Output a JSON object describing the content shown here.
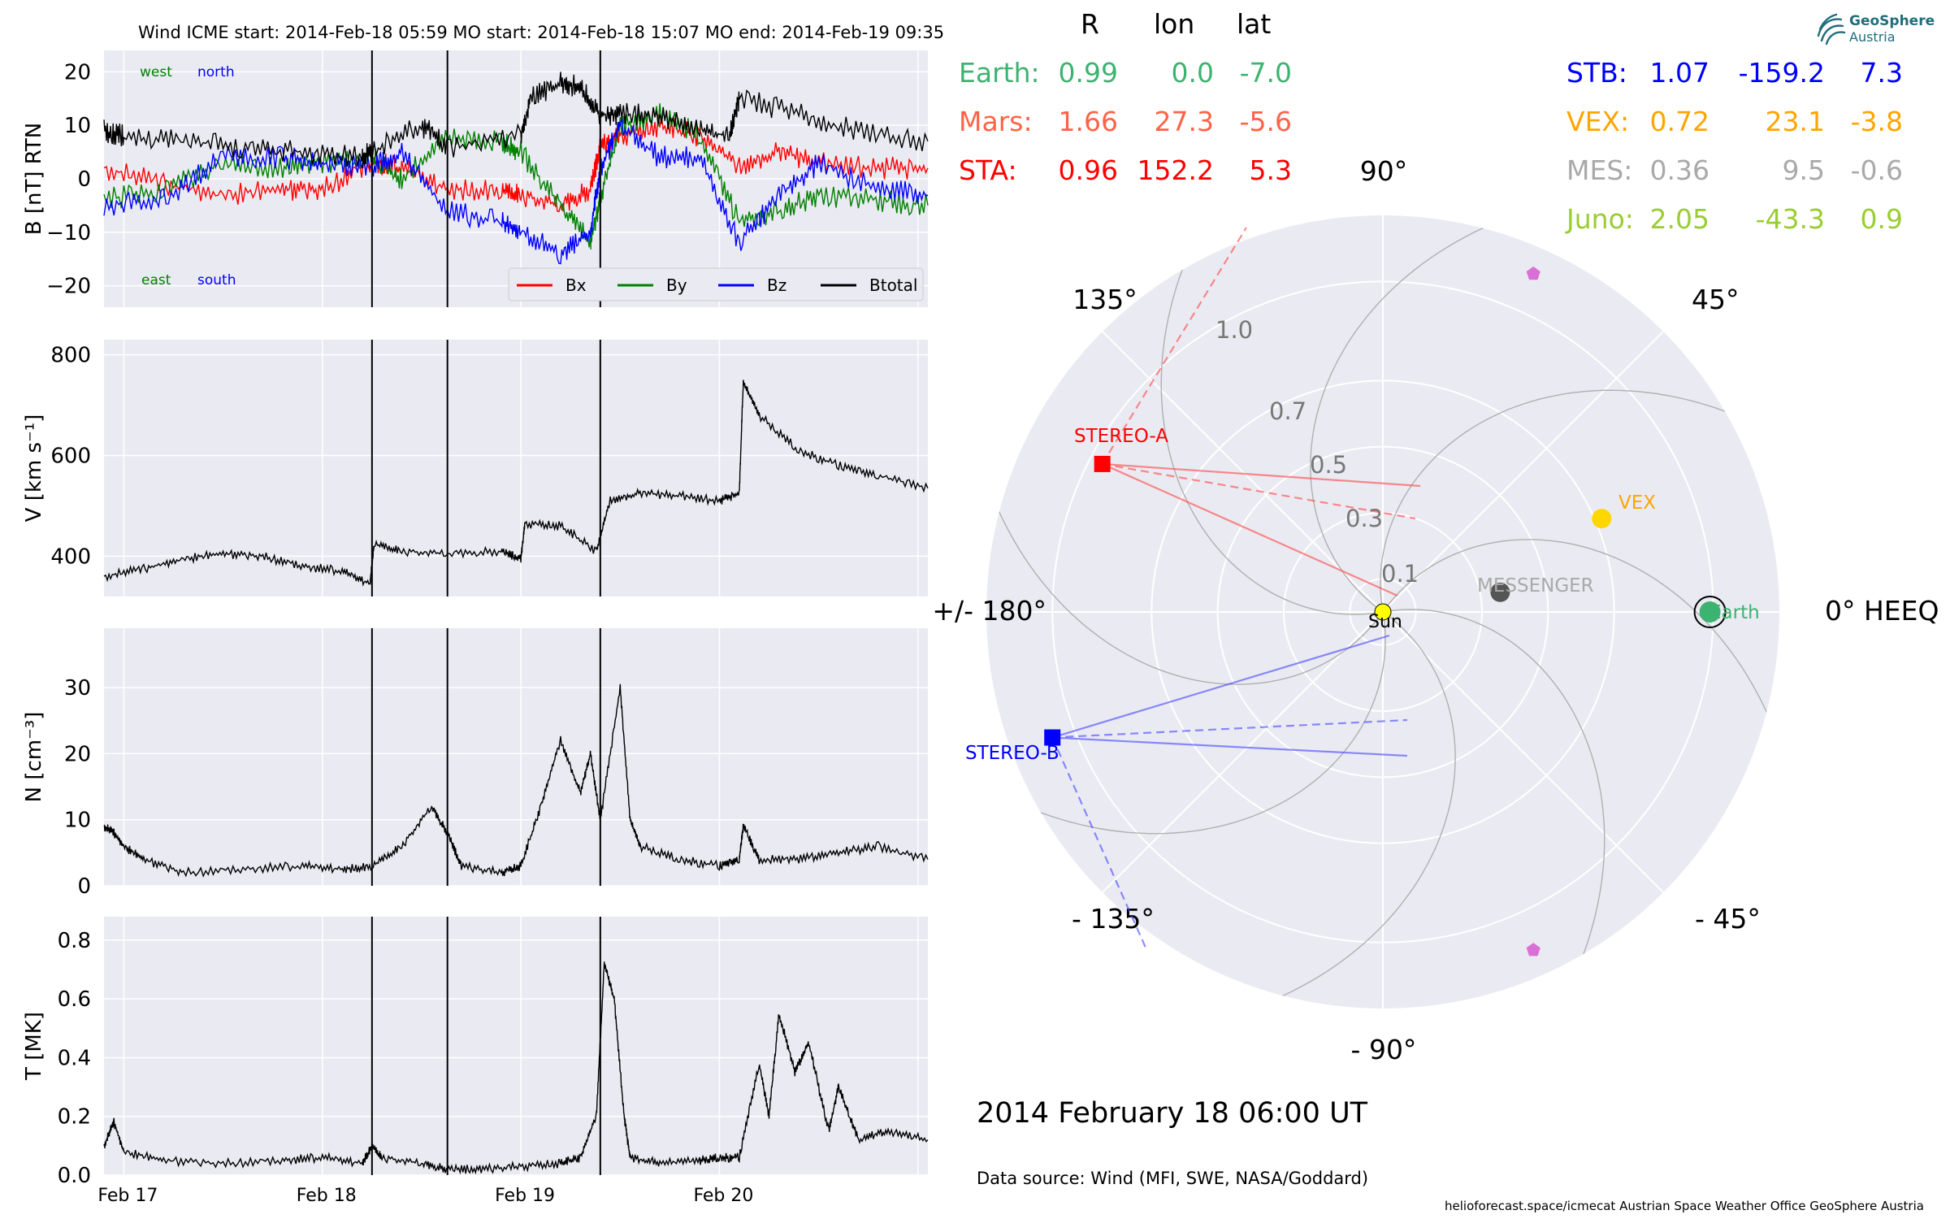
{
  "header": {
    "title": "Wind    ICME start: 2014-Feb-18 05:59   MO start: 2014-Feb-18 15:07   MO end: 2014-Feb-19 09:35"
  },
  "table": {
    "columns": [
      "R",
      "lon",
      "lat"
    ],
    "rows_left": [
      {
        "name": "Earth:",
        "R": "0.99",
        "lon": "0.0",
        "lat": "-7.0",
        "color": "#3cb371"
      },
      {
        "name": "Mars:",
        "R": "1.66",
        "lon": "27.3",
        "lat": "-5.6",
        "color": "#ff6347"
      },
      {
        "name": "STA:",
        "R": "0.96",
        "lon": "152.2",
        "lat": "5.3",
        "color": "#ff0000"
      }
    ],
    "rows_right": [
      {
        "name": "STB:",
        "R": "1.07",
        "lon": "-159.2",
        "lat": "7.3",
        "color": "#0000ff"
      },
      {
        "name": "VEX:",
        "R": "0.72",
        "lon": "23.1",
        "lat": "-3.8",
        "color": "#ffa500"
      },
      {
        "name": "MES:",
        "R": "0.36",
        "lon": "9.5",
        "lat": "-0.6",
        "color": "#a9a9a9"
      },
      {
        "name": "Juno:",
        "R": "2.05",
        "lon": "-43.3",
        "lat": "0.9",
        "color": "#9acd32"
      }
    ]
  },
  "polar": {
    "angle_labels": {
      "a90": "90°",
      "a45": "45°",
      "a135": "135°",
      "a0": "0° HEEQ",
      "a180": "+/- 180°",
      "am45": "- 45°",
      "am90": "- 90°",
      "am135": "- 135°"
    },
    "radial_labels": [
      "0.1",
      "0.3",
      "0.5",
      "0.7",
      "1.0"
    ],
    "radial_values": [
      0.1,
      0.3,
      0.5,
      0.7,
      1.0
    ],
    "rmax": 1.2,
    "bodies": [
      {
        "label": "Sun",
        "r": 0.0,
        "lon": 0,
        "color": "#ffff00",
        "marker": "circle"
      },
      {
        "label": "Earth",
        "r": 0.99,
        "lon": 0.0,
        "color": "#3cb371",
        "marker": "circle-ring"
      },
      {
        "label": "VEX",
        "r": 0.72,
        "lon": 23.1,
        "color": "#ffd700",
        "marker": "circle"
      },
      {
        "label": "MESSENGER",
        "r": 0.36,
        "lon": 9.5,
        "color": "#555555",
        "marker": "circle"
      },
      {
        "label": "STEREO-A",
        "r": 0.96,
        "lon": 152.2,
        "color": "#ff0000",
        "marker": "square"
      },
      {
        "label": "STEREO-B",
        "r": 1.07,
        "lon": -159.2,
        "color": "#0000ff",
        "marker": "square"
      },
      {
        "label": "",
        "r": 1.12,
        "lon": 66,
        "color": "#da70d6",
        "marker": "pentagon"
      },
      {
        "label": "",
        "r": 1.12,
        "lon": -66,
        "color": "#da70d6",
        "marker": "pentagon"
      }
    ],
    "date": "2014 February 18  06:00 UT",
    "source": "Data source: Wind (MFI, SWE, NASA/Goddard)",
    "footer": "helioforecast.space/icmecat   Austrian Space Weather Office   GeoSphere Austria",
    "logo_line1": "GeoSphere",
    "logo_line2": "Austria"
  },
  "chart_data": [
    {
      "type": "line",
      "ylabel": "B [nT] RTN",
      "ylim": [
        -24,
        24
      ],
      "yticks": [
        20,
        10,
        0,
        -10,
        -20
      ],
      "yticklabels": [
        "20",
        "10",
        "0",
        "−10",
        "−20"
      ],
      "annotations": {
        "west": "west",
        "north": "north",
        "east": "east",
        "south": "south"
      },
      "legend": [
        "Bx",
        "By",
        "Bz",
        "Btotal"
      ],
      "legend_placement": "lower-right",
      "x_range_days": [
        16.9,
        21.05
      ],
      "xticklabels": [
        "Feb 17",
        "Feb 18",
        "Feb 19",
        "Feb 20"
      ],
      "xticks": [
        17,
        18,
        19,
        20
      ],
      "event_lines": [
        18.25,
        18.63,
        19.4
      ],
      "series": [
        {
          "name": "Bx",
          "color": "#ff0000",
          "x": [
            16.9,
            17.2,
            17.5,
            17.8,
            18.0,
            18.25,
            18.4,
            18.63,
            18.9,
            19.0,
            19.2,
            19.35,
            19.4,
            19.5,
            19.7,
            19.9,
            20.1,
            20.3,
            20.5,
            20.8,
            21.05
          ],
          "y": [
            2,
            -1,
            -3,
            -2,
            -2,
            3,
            2,
            -2,
            -2,
            -3,
            -5,
            -2,
            6,
            8,
            10,
            8,
            2,
            5,
            3,
            2,
            2
          ]
        },
        {
          "name": "By",
          "color": "#008000",
          "x": [
            16.9,
            17.2,
            17.5,
            17.8,
            18.0,
            18.25,
            18.4,
            18.63,
            18.9,
            19.0,
            19.2,
            19.35,
            19.4,
            19.5,
            19.7,
            19.9,
            20.1,
            20.3,
            20.5,
            20.8,
            21.05
          ],
          "y": [
            -4,
            -2,
            3,
            2,
            3,
            4,
            0,
            8,
            7,
            5,
            -5,
            -12,
            -4,
            10,
            12,
            8,
            -8,
            -6,
            -3,
            -4,
            -5
          ]
        },
        {
          "name": "Bz",
          "color": "#0000ff",
          "x": [
            16.9,
            17.2,
            17.5,
            17.8,
            18.0,
            18.25,
            18.4,
            18.63,
            18.9,
            19.0,
            19.2,
            19.35,
            19.4,
            19.5,
            19.7,
            19.9,
            20.1,
            20.3,
            20.5,
            20.8,
            21.05
          ],
          "y": [
            -5,
            -4,
            4,
            4,
            3,
            2,
            5,
            -6,
            -8,
            -10,
            -14,
            -10,
            2,
            10,
            4,
            4,
            -12,
            -3,
            3,
            -2,
            -3
          ]
        },
        {
          "name": "Btotal",
          "color": "#000000",
          "x": [
            16.9,
            17.0,
            17.3,
            17.6,
            17.9,
            18.2,
            18.25,
            18.5,
            18.63,
            19.0,
            19.05,
            19.2,
            19.3,
            19.4,
            19.5,
            19.7,
            19.9,
            20.05,
            20.1,
            20.4,
            20.7,
            21.05
          ],
          "y": [
            9,
            8,
            7,
            6,
            5,
            4,
            5,
            10,
            6,
            8,
            15,
            18,
            17,
            12,
            12,
            12,
            9,
            8,
            15,
            12,
            9,
            7
          ]
        }
      ]
    },
    {
      "type": "line",
      "ylabel": "V [km s⁻¹]",
      "ylim": [
        320,
        830
      ],
      "yticks": [
        400,
        600,
        800
      ],
      "yticklabels": [
        "400",
        "600",
        "800"
      ],
      "x_range_days": [
        16.9,
        21.05
      ],
      "event_lines": [
        18.25,
        18.63,
        19.4
      ],
      "series": [
        {
          "name": "",
          "color": "#000000",
          "x": [
            16.9,
            17.1,
            17.3,
            17.5,
            17.7,
            17.9,
            18.1,
            18.24,
            18.26,
            18.4,
            18.63,
            18.9,
            19.0,
            19.02,
            19.2,
            19.38,
            19.45,
            19.6,
            19.8,
            20.0,
            20.1,
            20.12,
            20.2,
            20.4,
            20.6,
            20.8,
            21.05
          ],
          "y": [
            360,
            375,
            395,
            405,
            400,
            380,
            370,
            345,
            425,
            410,
            405,
            410,
            395,
            465,
            460,
            410,
            510,
            525,
            520,
            510,
            525,
            745,
            680,
            610,
            580,
            560,
            535
          ]
        }
      ]
    },
    {
      "type": "line",
      "ylabel": "N [cm⁻³]",
      "ylim": [
        0,
        39
      ],
      "yticks": [
        0,
        10,
        20,
        30
      ],
      "yticklabels": [
        "0",
        "10",
        "20",
        "30"
      ],
      "x_range_days": [
        16.9,
        21.05
      ],
      "event_lines": [
        18.25,
        18.63,
        19.4
      ],
      "series": [
        {
          "name": "",
          "color": "#000000",
          "x": [
            16.9,
            16.95,
            17.0,
            17.1,
            17.3,
            17.6,
            17.9,
            18.1,
            18.25,
            18.4,
            18.55,
            18.63,
            18.7,
            18.9,
            19.0,
            19.1,
            19.2,
            19.3,
            19.35,
            19.4,
            19.5,
            19.55,
            19.6,
            19.8,
            20.0,
            20.1,
            20.12,
            20.2,
            20.4,
            20.6,
            20.8,
            21.05
          ],
          "y": [
            9,
            8,
            6,
            4,
            2,
            2.5,
            3,
            2.5,
            3,
            6,
            12,
            8,
            3,
            2,
            3,
            12,
            22,
            14,
            20,
            10,
            30,
            10,
            6,
            4,
            3,
            4,
            9,
            4,
            4,
            5,
            6,
            4
          ]
        }
      ]
    },
    {
      "type": "line",
      "ylabel": "T [MK]",
      "ylim": [
        0,
        0.88
      ],
      "yticks": [
        0.0,
        0.2,
        0.4,
        0.6,
        0.8
      ],
      "yticklabels": [
        "0.0",
        "0.2",
        "0.4",
        "0.6",
        "0.8"
      ],
      "x_range_days": [
        16.9,
        21.05
      ],
      "event_lines": [
        18.25,
        18.63,
        19.4
      ],
      "series": [
        {
          "name": "",
          "color": "#000000",
          "x": [
            16.9,
            16.95,
            17.0,
            17.2,
            17.5,
            17.8,
            18.0,
            18.2,
            18.25,
            18.3,
            18.5,
            18.63,
            18.8,
            19.0,
            19.2,
            19.3,
            19.38,
            19.42,
            19.47,
            19.52,
            19.55,
            19.7,
            19.9,
            20.0,
            20.1,
            20.2,
            20.25,
            20.3,
            20.38,
            20.45,
            20.55,
            20.6,
            20.7,
            20.85,
            21.05
          ],
          "y": [
            0.1,
            0.18,
            0.08,
            0.05,
            0.04,
            0.05,
            0.06,
            0.04,
            0.1,
            0.06,
            0.04,
            0.02,
            0.02,
            0.03,
            0.04,
            0.06,
            0.2,
            0.72,
            0.6,
            0.2,
            0.06,
            0.04,
            0.05,
            0.06,
            0.06,
            0.38,
            0.2,
            0.55,
            0.35,
            0.45,
            0.15,
            0.3,
            0.12,
            0.15,
            0.12
          ]
        }
      ]
    }
  ]
}
